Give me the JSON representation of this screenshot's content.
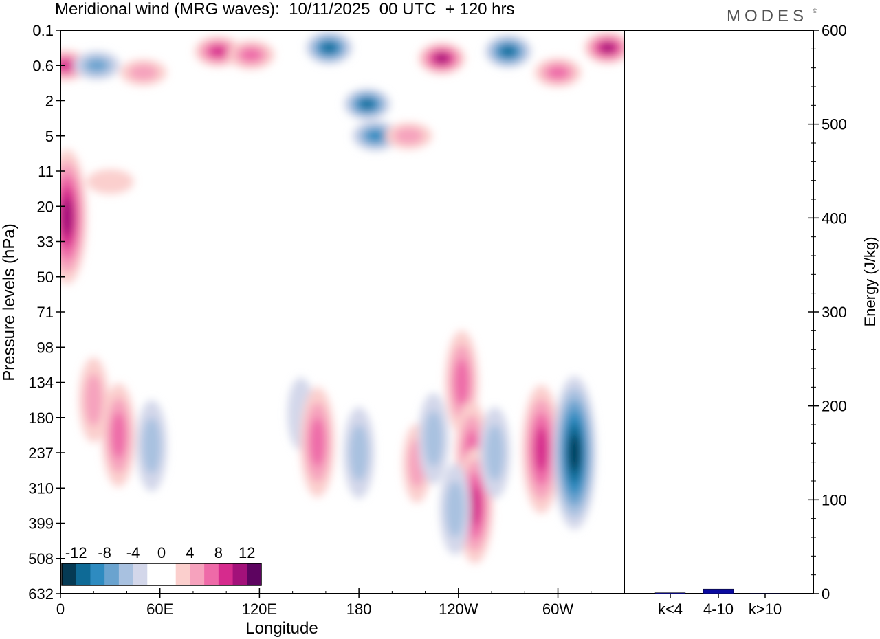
{
  "header": {
    "title": "Meridional wind (MRG waves):  10/11/2025  00 UTC  + 120 hrs",
    "logo": "MODES",
    "logo_mark": "©"
  },
  "chart_data": [
    {
      "type": "heatmap",
      "title": "Meridional wind (MRG waves):  10/11/2025  00 UTC  + 120 hrs",
      "xlabel": "Longitude",
      "ylabel": "Pressure levels (hPa)",
      "x_ticks": [
        "0",
        "60E",
        "120E",
        "180",
        "120W",
        "60W"
      ],
      "x_tick_degrees": [
        0,
        60,
        120,
        180,
        240,
        300
      ],
      "x_range": [
        0,
        340
      ],
      "y_ticks": [
        "0.1",
        "0.6",
        "2",
        "5",
        "11",
        "20",
        "33",
        "50",
        "71",
        "98",
        "134",
        "180",
        "237",
        "310",
        "399",
        "508",
        "632"
      ],
      "colorbar": {
        "labels": [
          "-12",
          "-8",
          "-4",
          "0",
          "4",
          "8",
          "12"
        ],
        "levels": [
          -12,
          -8,
          -4,
          0,
          4,
          8,
          12
        ],
        "colors": [
          "#053a54",
          "#0e6a96",
          "#2e8bc0",
          "#6aa3cf",
          "#a8c1e0",
          "#d3d7ea",
          "#ffffff",
          "#ffffff",
          "#fbcfcd",
          "#f6a2bd",
          "#ee6aa8",
          "#d62b8d",
          "#a3117a",
          "#5d0460"
        ]
      },
      "features": [
        {
          "lon": 4,
          "level": 5.3,
          "sign": 1,
          "mag": 14
        },
        {
          "lon": 3,
          "level": 1.0,
          "sign": 1,
          "mag": 12
        },
        {
          "lon": 22,
          "level": 1.0,
          "sign": -1,
          "mag": 10
        },
        {
          "lon": 50,
          "level": 1.2,
          "sign": 1,
          "mag": 6
        },
        {
          "lon": 95,
          "level": 0.6,
          "sign": 1,
          "mag": 12
        },
        {
          "lon": 115,
          "level": 0.7,
          "sign": 1,
          "mag": 10
        },
        {
          "lon": 162,
          "level": 0.5,
          "sign": -1,
          "mag": 16
        },
        {
          "lon": 230,
          "level": 0.8,
          "sign": 1,
          "mag": 14
        },
        {
          "lon": 270,
          "level": 0.6,
          "sign": -1,
          "mag": 16
        },
        {
          "lon": 330,
          "level": 0.5,
          "sign": 1,
          "mag": 14
        },
        {
          "lon": 300,
          "level": 1.2,
          "sign": 1,
          "mag": 10
        },
        {
          "lon": 185,
          "level": 2.1,
          "sign": -1,
          "mag": 14
        },
        {
          "lon": 190,
          "level": 3.0,
          "sign": -1,
          "mag": 12
        },
        {
          "lon": 210,
          "level": 3.0,
          "sign": 1,
          "mag": 7
        },
        {
          "lon": 30,
          "level": 4.3,
          "sign": 1,
          "mag": 4
        },
        {
          "lon": 20,
          "level": 10.5,
          "sign": 1,
          "mag": 6
        },
        {
          "lon": 35,
          "level": 11.5,
          "sign": 1,
          "mag": 9
        },
        {
          "lon": 55,
          "level": 11.8,
          "sign": -1,
          "mag": 7
        },
        {
          "lon": 145,
          "level": 10.9,
          "sign": -1,
          "mag": 4
        },
        {
          "lon": 155,
          "level": 11.7,
          "sign": 1,
          "mag": 10
        },
        {
          "lon": 180,
          "level": 12.0,
          "sign": -1,
          "mag": 7
        },
        {
          "lon": 215,
          "level": 12.3,
          "sign": 1,
          "mag": 5
        },
        {
          "lon": 225,
          "level": 11.6,
          "sign": -1,
          "mag": 7
        },
        {
          "lon": 242,
          "level": 10.0,
          "sign": 1,
          "mag": 9
        },
        {
          "lon": 248,
          "level": 12.0,
          "sign": 1,
          "mag": 9
        },
        {
          "lon": 250,
          "level": 13.5,
          "sign": 1,
          "mag": 11
        },
        {
          "lon": 238,
          "level": 13.6,
          "sign": -1,
          "mag": 7
        },
        {
          "lon": 262,
          "level": 12.0,
          "sign": -1,
          "mag": 7
        },
        {
          "lon": 290,
          "level": 11.9,
          "sign": 1,
          "mag": 13
        },
        {
          "lon": 310,
          "level": 12.0,
          "sign": -1,
          "mag": 17
        }
      ]
    },
    {
      "type": "bar",
      "categories": [
        "k<4",
        "4-10",
        "k>10"
      ],
      "values": [
        1,
        5,
        0.5
      ],
      "ylabel": "Energy (J/kg)",
      "ylim": [
        0,
        600
      ],
      "y_ticks": [
        0,
        100,
        200,
        300,
        400,
        500,
        600
      ],
      "bar_color": "#0a0aa0"
    }
  ]
}
